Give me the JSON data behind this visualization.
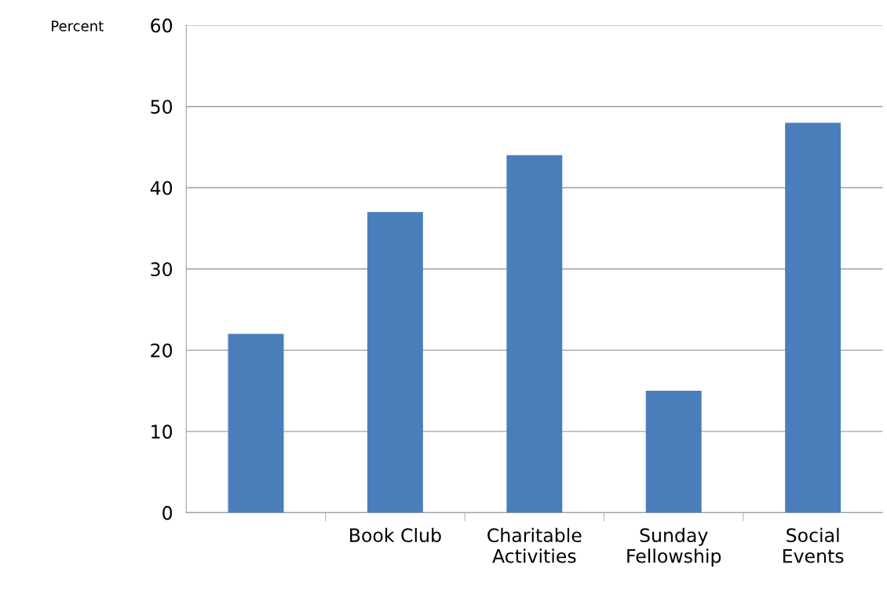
{
  "chart_data": {
    "type": "bar",
    "ylabel": "Percent",
    "categories": [
      null,
      "Book Club",
      "Charitable\nActivities",
      "Sunday\nFellowship",
      "Social\nEvents"
    ],
    "values": [
      22,
      37,
      44,
      15,
      48
    ],
    "color": "#4a7ebb",
    "ylim": [
      0,
      60
    ],
    "yticks": [
      0,
      10,
      20,
      30,
      40,
      50,
      60
    ],
    "grid": "y",
    "legend": false
  }
}
